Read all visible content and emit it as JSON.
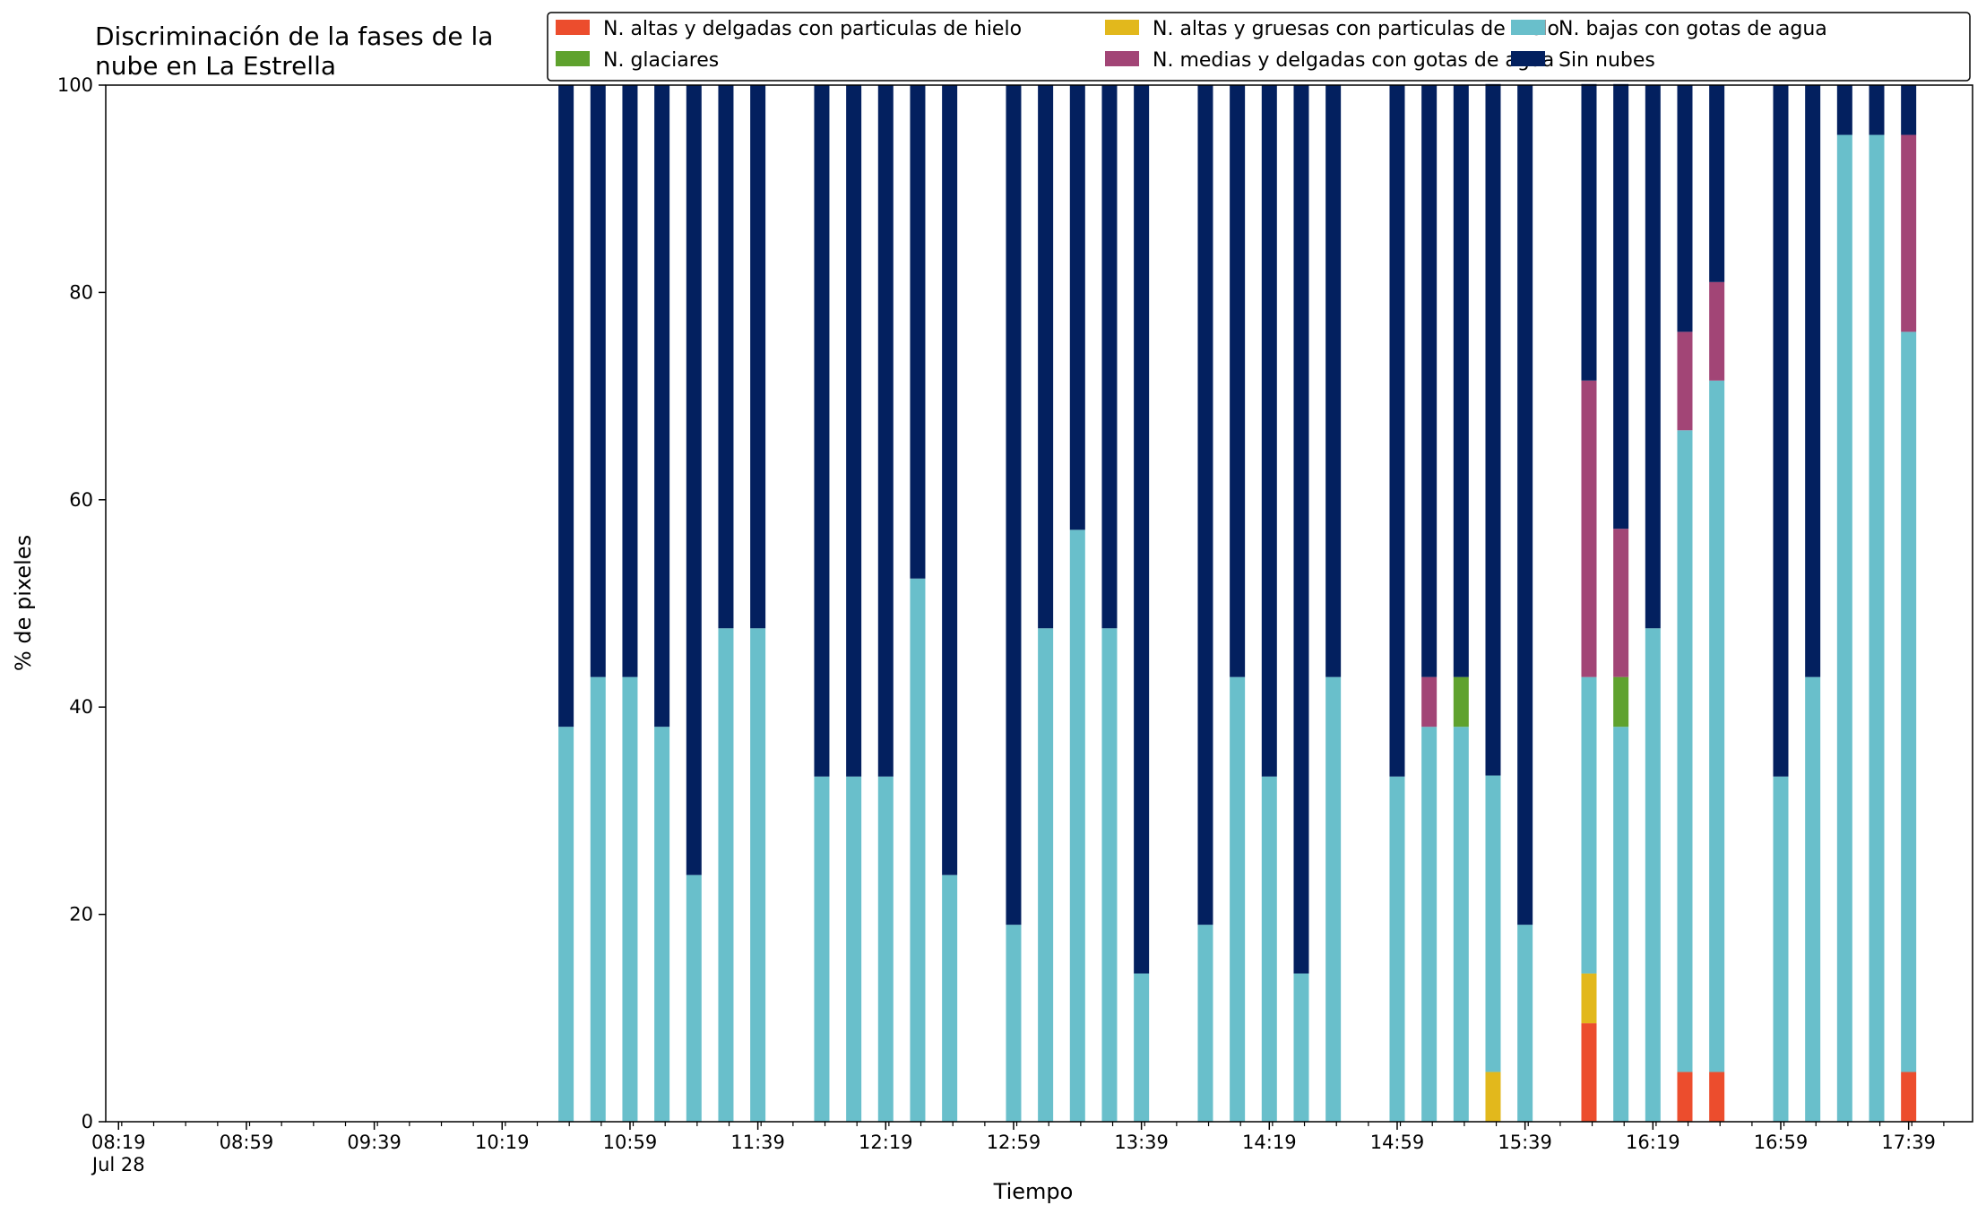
{
  "chart_data": {
    "type": "bar",
    "stacked": true,
    "title": [
      "Discriminación de la fases de la",
      "nube en La Estrella"
    ],
    "xlabel": "Tiempo",
    "ylabel": "% de pixeles",
    "ylim": [
      0,
      100
    ],
    "yticks": [
      0,
      20,
      40,
      60,
      80,
      100
    ],
    "xlim": [
      "08:15",
      "17:59"
    ],
    "xtick_labels": [
      {
        "time": "08:19",
        "label": "08:19",
        "sublabel": "Jul 28"
      },
      {
        "time": "08:59",
        "label": "08:59"
      },
      {
        "time": "09:39",
        "label": "09:39"
      },
      {
        "time": "10:19",
        "label": "10:19"
      },
      {
        "time": "10:59",
        "label": "10:59"
      },
      {
        "time": "11:39",
        "label": "11:39"
      },
      {
        "time": "12:19",
        "label": "12:19"
      },
      {
        "time": "12:59",
        "label": "12:59"
      },
      {
        "time": "13:39",
        "label": "13:39"
      },
      {
        "time": "14:19",
        "label": "14:19"
      },
      {
        "time": "14:59",
        "label": "14:59"
      },
      {
        "time": "15:39",
        "label": "15:39"
      },
      {
        "time": "16:19",
        "label": "16:19"
      },
      {
        "time": "16:59",
        "label": "16:59"
      },
      {
        "time": "17:39",
        "label": "17:39"
      }
    ],
    "minor_tick_interval_minutes": 10,
    "legend_position": "top",
    "categories": [
      "10:39",
      "10:49",
      "10:59",
      "11:09",
      "11:19",
      "11:29",
      "11:39",
      "11:59",
      "12:09",
      "12:19",
      "12:29",
      "12:39",
      "12:59",
      "13:09",
      "13:19",
      "13:29",
      "13:39",
      "13:59",
      "14:09",
      "14:19",
      "14:29",
      "14:39",
      "14:59",
      "15:09",
      "15:19",
      "15:29",
      "15:39",
      "15:59",
      "16:09",
      "16:19",
      "16:29",
      "16:39",
      "16:59",
      "17:09",
      "17:19",
      "17:29",
      "17:39"
    ],
    "series": [
      {
        "name": "N. altas y delgadas con particulas de hielo",
        "color": "#ec4d2d",
        "values": [
          0,
          0,
          0,
          0,
          0,
          0,
          0,
          0,
          0,
          0,
          0,
          0,
          0,
          0,
          0,
          0,
          0,
          0,
          0,
          0,
          0,
          0,
          0,
          0,
          0,
          0,
          0,
          9.5,
          0,
          0,
          4.8,
          4.8,
          0,
          0,
          0,
          0,
          4.8
        ]
      },
      {
        "name": "N. altas y gruesas con particulas de hielo",
        "color": "#e2b81c",
        "values": [
          0,
          0,
          0,
          0,
          0,
          0,
          0,
          0,
          0,
          0,
          0,
          0,
          0,
          0,
          0,
          0,
          0,
          0,
          0,
          0,
          0,
          0,
          0,
          0,
          0,
          4.8,
          0,
          4.8,
          0,
          0,
          0,
          0,
          0,
          0,
          0,
          0,
          0
        ]
      },
      {
        "name": "N. bajas con gotas de agua",
        "color": "#69bfcb",
        "values": [
          38.1,
          42.9,
          42.9,
          38.1,
          23.8,
          47.6,
          47.6,
          33.3,
          33.3,
          33.3,
          52.4,
          23.8,
          19.0,
          47.6,
          57.1,
          47.6,
          14.3,
          19.0,
          42.9,
          33.3,
          14.3,
          42.9,
          33.3,
          38.1,
          38.1,
          28.6,
          19.0,
          28.6,
          38.1,
          47.6,
          61.9,
          66.7,
          33.3,
          42.9,
          95.2,
          95.2,
          71.4
        ]
      },
      {
        "name": "N. glaciares",
        "color": "#5fa22e",
        "values": [
          0,
          0,
          0,
          0,
          0,
          0,
          0,
          0,
          0,
          0,
          0,
          0,
          0,
          0,
          0,
          0,
          0,
          0,
          0,
          0,
          0,
          0,
          0,
          0,
          4.8,
          0,
          0,
          0,
          4.8,
          0,
          0,
          0,
          0,
          0,
          0,
          0,
          0
        ]
      },
      {
        "name": "N. medias y delgadas con gotas de agua",
        "color": "#a24576",
        "values": [
          0,
          0,
          0,
          0,
          0,
          0,
          0,
          0,
          0,
          0,
          0,
          0,
          0,
          0,
          0,
          0,
          0,
          0,
          0,
          0,
          0,
          0,
          0,
          4.8,
          0,
          0,
          0,
          28.6,
          14.3,
          0,
          9.5,
          9.5,
          0,
          0,
          0,
          0,
          19.0
        ]
      },
      {
        "name": "Sin nubes",
        "color": "#03205f",
        "values": [
          61.9,
          57.1,
          57.1,
          61.9,
          76.2,
          52.4,
          52.4,
          66.7,
          66.7,
          66.7,
          47.6,
          76.2,
          81.0,
          52.4,
          42.9,
          52.4,
          85.7,
          81.0,
          57.1,
          66.7,
          85.7,
          57.1,
          66.7,
          57.1,
          57.1,
          66.7,
          81.0,
          28.6,
          42.9,
          52.4,
          23.8,
          19.0,
          66.7,
          57.1,
          4.8,
          4.8,
          4.8
        ]
      }
    ]
  }
}
